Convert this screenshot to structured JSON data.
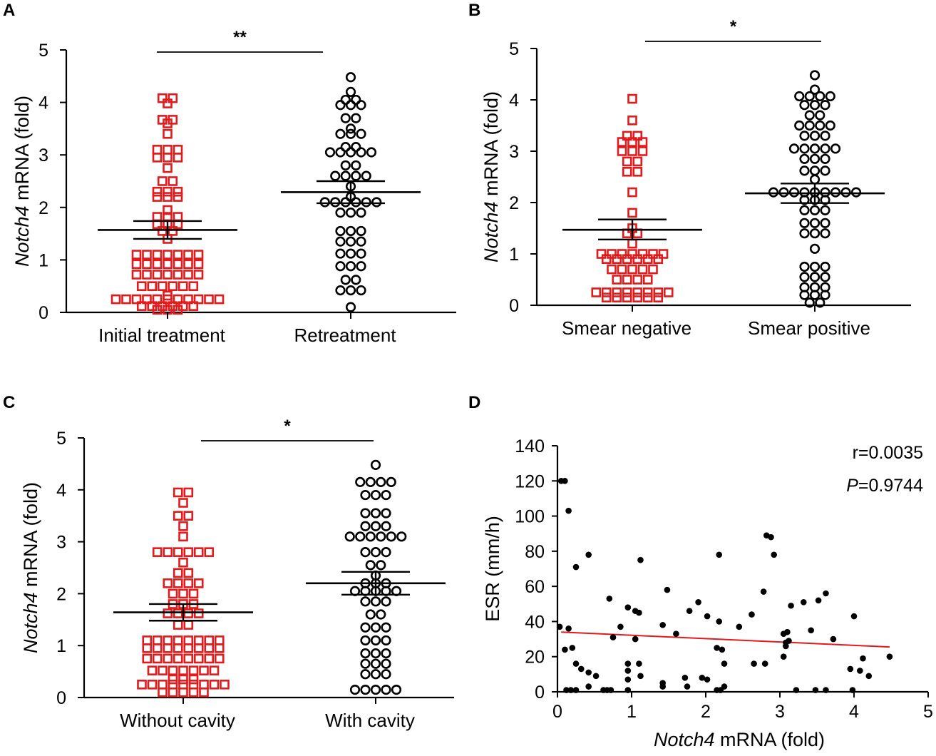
{
  "chart_data": [
    {
      "panel": "A",
      "type": "scatter",
      "ylabel": {
        "italic": "Notch4",
        "rest": " mRNA (fold)"
      },
      "ylim": [
        0,
        5
      ],
      "yticks": [
        0,
        1,
        2,
        3,
        4,
        5
      ],
      "significance": "**",
      "groups": [
        {
          "name": "Initial treatment",
          "color": "#e31a1c",
          "marker": "square",
          "mean": 1.57,
          "sem_upper": 1.74,
          "sem_lower": 1.4,
          "rows": [
            {
              "y": 4.08,
              "n": 2
            },
            {
              "y": 3.98,
              "n": 1
            },
            {
              "y": 3.67,
              "n": 2
            },
            {
              "y": 3.6,
              "n": 1
            },
            {
              "y": 3.4,
              "n": 1
            },
            {
              "y": 3.1,
              "n": 3
            },
            {
              "y": 2.95,
              "n": 3
            },
            {
              "y": 2.75,
              "n": 1
            },
            {
              "y": 2.5,
              "n": 2
            },
            {
              "y": 2.3,
              "n": 3
            },
            {
              "y": 2.2,
              "n": 3
            },
            {
              "y": 1.95,
              "n": 1
            },
            {
              "y": 1.82,
              "n": 3
            },
            {
              "y": 1.68,
              "n": 3
            },
            {
              "y": 1.55,
              "n": 2
            },
            {
              "y": 1.4,
              "n": 1
            },
            {
              "y": 1.1,
              "n": 7
            },
            {
              "y": 0.92,
              "n": 7
            },
            {
              "y": 0.72,
              "n": 7
            },
            {
              "y": 0.5,
              "n": 6
            },
            {
              "y": 0.32,
              "n": 1
            },
            {
              "y": 0.25,
              "n": 11
            },
            {
              "y": 0.12,
              "n": 6
            },
            {
              "y": 0.05,
              "n": 3
            }
          ]
        },
        {
          "name": "Retreatment",
          "color": "#000000",
          "marker": "circle",
          "mean": 2.29,
          "sem_upper": 2.5,
          "sem_lower": 2.08,
          "rows": [
            {
              "y": 4.48,
              "n": 1
            },
            {
              "y": 4.2,
              "n": 1
            },
            {
              "y": 4.05,
              "n": 2
            },
            {
              "y": 3.95,
              "n": 3
            },
            {
              "y": 3.7,
              "n": 2
            },
            {
              "y": 3.5,
              "n": 1
            },
            {
              "y": 3.4,
              "n": 3
            },
            {
              "y": 3.15,
              "n": 2
            },
            {
              "y": 3.05,
              "n": 5
            },
            {
              "y": 2.8,
              "n": 2
            },
            {
              "y": 2.6,
              "n": 4
            },
            {
              "y": 2.4,
              "n": 1
            },
            {
              "y": 2.2,
              "n": 1
            },
            {
              "y": 2.1,
              "n": 6
            },
            {
              "y": 1.9,
              "n": 3
            },
            {
              "y": 1.55,
              "n": 3
            },
            {
              "y": 1.35,
              "n": 3
            },
            {
              "y": 1.12,
              "n": 3
            },
            {
              "y": 0.88,
              "n": 3
            },
            {
              "y": 0.62,
              "n": 2
            },
            {
              "y": 0.42,
              "n": 3
            },
            {
              "y": 0.1,
              "n": 1
            }
          ]
        }
      ]
    },
    {
      "panel": "B",
      "type": "scatter",
      "ylabel": {
        "italic": "Notch4",
        "rest": " mRNA (fold)"
      },
      "ylim": [
        0,
        5
      ],
      "yticks": [
        0,
        1,
        2,
        3,
        4,
        5
      ],
      "significance": "*",
      "groups": [
        {
          "name": "Smear negative",
          "color": "#e31a1c",
          "marker": "square",
          "mean": 1.47,
          "sem_upper": 1.67,
          "sem_lower": 1.28,
          "rows": [
            {
              "y": 4.02,
              "n": 1
            },
            {
              "y": 3.6,
              "n": 1
            },
            {
              "y": 3.3,
              "n": 2
            },
            {
              "y": 3.18,
              "n": 3
            },
            {
              "y": 3.0,
              "n": 3
            },
            {
              "y": 2.8,
              "n": 2
            },
            {
              "y": 2.6,
              "n": 2
            },
            {
              "y": 2.2,
              "n": 1
            },
            {
              "y": 1.8,
              "n": 1
            },
            {
              "y": 1.5,
              "n": 1
            },
            {
              "y": 1.4,
              "n": 2
            },
            {
              "y": 1.2,
              "n": 1
            },
            {
              "y": 1.0,
              "n": 7
            },
            {
              "y": 0.9,
              "n": 6
            },
            {
              "y": 0.7,
              "n": 5
            },
            {
              "y": 0.5,
              "n": 4
            },
            {
              "y": 0.25,
              "n": 8
            },
            {
              "y": 0.15,
              "n": 6
            }
          ]
        },
        {
          "name": "Smear positive",
          "color": "#000000",
          "marker": "circle",
          "mean": 2.18,
          "sem_upper": 2.37,
          "sem_lower": 1.99,
          "rows": [
            {
              "y": 4.48,
              "n": 1
            },
            {
              "y": 4.2,
              "n": 1
            },
            {
              "y": 4.07,
              "n": 4
            },
            {
              "y": 3.9,
              "n": 3
            },
            {
              "y": 3.7,
              "n": 2
            },
            {
              "y": 3.5,
              "n": 4
            },
            {
              "y": 3.3,
              "n": 3
            },
            {
              "y": 3.05,
              "n": 5
            },
            {
              "y": 2.85,
              "n": 3
            },
            {
              "y": 2.62,
              "n": 3
            },
            {
              "y": 2.45,
              "n": 1
            },
            {
              "y": 2.2,
              "n": 9
            },
            {
              "y": 2.05,
              "n": 3
            },
            {
              "y": 1.85,
              "n": 3
            },
            {
              "y": 1.6,
              "n": 3
            },
            {
              "y": 1.4,
              "n": 3
            },
            {
              "y": 1.1,
              "n": 1
            },
            {
              "y": 0.75,
              "n": 3
            },
            {
              "y": 0.55,
              "n": 3
            },
            {
              "y": 0.35,
              "n": 3
            },
            {
              "y": 0.2,
              "n": 3
            },
            {
              "y": 0.05,
              "n": 2
            }
          ]
        }
      ]
    },
    {
      "panel": "C",
      "type": "scatter",
      "ylabel": {
        "italic": "Notch4",
        "rest": " mRNA (fold)"
      },
      "ylim": [
        0,
        5
      ],
      "yticks": [
        0,
        1,
        2,
        3,
        4,
        5
      ],
      "significance": "*",
      "groups": [
        {
          "name": "Without cavity",
          "color": "#e31a1c",
          "marker": "square",
          "mean": 1.64,
          "sem_upper": 1.8,
          "sem_lower": 1.48,
          "rows": [
            {
              "y": 3.95,
              "n": 2
            },
            {
              "y": 3.75,
              "n": 1
            },
            {
              "y": 3.5,
              "n": 2
            },
            {
              "y": 3.3,
              "n": 1
            },
            {
              "y": 3.1,
              "n": 1
            },
            {
              "y": 2.8,
              "n": 6
            },
            {
              "y": 2.6,
              "n": 1
            },
            {
              "y": 2.4,
              "n": 2
            },
            {
              "y": 2.2,
              "n": 4
            },
            {
              "y": 2.0,
              "n": 3
            },
            {
              "y": 1.8,
              "n": 3
            },
            {
              "y": 1.62,
              "n": 4
            },
            {
              "y": 1.4,
              "n": 2
            },
            {
              "y": 1.1,
              "n": 8
            },
            {
              "y": 0.95,
              "n": 8
            },
            {
              "y": 0.75,
              "n": 8
            },
            {
              "y": 0.52,
              "n": 7
            },
            {
              "y": 0.35,
              "n": 3
            },
            {
              "y": 0.25,
              "n": 9
            },
            {
              "y": 0.1,
              "n": 5
            }
          ]
        },
        {
          "name": "With cavity",
          "color": "#000000",
          "marker": "circle",
          "mean": 2.2,
          "sem_upper": 2.42,
          "sem_lower": 1.98,
          "rows": [
            {
              "y": 4.48,
              "n": 1
            },
            {
              "y": 4.15,
              "n": 4
            },
            {
              "y": 3.9,
              "n": 3
            },
            {
              "y": 3.55,
              "n": 3
            },
            {
              "y": 3.3,
              "n": 3
            },
            {
              "y": 3.1,
              "n": 6
            },
            {
              "y": 2.8,
              "n": 3
            },
            {
              "y": 2.55,
              "n": 2
            },
            {
              "y": 2.35,
              "n": 1
            },
            {
              "y": 2.2,
              "n": 3
            },
            {
              "y": 2.05,
              "n": 5
            },
            {
              "y": 1.85,
              "n": 3
            },
            {
              "y": 1.6,
              "n": 2
            },
            {
              "y": 1.35,
              "n": 3
            },
            {
              "y": 1.1,
              "n": 3
            },
            {
              "y": 0.85,
              "n": 3
            },
            {
              "y": 0.65,
              "n": 3
            },
            {
              "y": 0.45,
              "n": 3
            },
            {
              "y": 0.15,
              "n": 5
            }
          ]
        }
      ]
    },
    {
      "panel": "D",
      "type": "scatter",
      "xlabel": {
        "italic": "Notch4",
        "rest": " mRNA (fold)"
      },
      "ylabel": "ESR (mm/h)",
      "xlim": [
        0,
        5
      ],
      "ylim": [
        0,
        140
      ],
      "xticks": [
        0,
        1,
        2,
        3,
        4,
        5
      ],
      "yticks": [
        0,
        20,
        40,
        60,
        80,
        100,
        120,
        140
      ],
      "stat_r": "r=0.0035",
      "stat_p_label": "P",
      "stat_p_value": "=0.9744",
      "regression": {
        "x": [
          0.05,
          4.48
        ],
        "y": [
          34,
          25.5
        ],
        "color": "#e31a1c"
      },
      "points": [
        [
          0.05,
          120
        ],
        [
          0.1,
          120
        ],
        [
          0.15,
          103
        ],
        [
          0.25,
          71
        ],
        [
          0.42,
          78
        ],
        [
          0.03,
          37
        ],
        [
          0.15,
          36
        ],
        [
          0.1,
          24
        ],
        [
          0.2,
          25
        ],
        [
          0.25,
          16
        ],
        [
          0.32,
          13
        ],
        [
          0.42,
          11
        ],
        [
          0.52,
          9
        ],
        [
          0.42,
          3
        ],
        [
          0.12,
          1
        ],
        [
          0.18,
          1
        ],
        [
          0.25,
          1
        ],
        [
          0.62,
          1
        ],
        [
          0.67,
          1
        ],
        [
          0.72,
          1
        ],
        [
          0.7,
          53
        ],
        [
          0.75,
          31
        ],
        [
          0.85,
          37
        ],
        [
          0.95,
          48
        ],
        [
          1.05,
          46
        ],
        [
          0.95,
          16
        ],
        [
          0.95,
          12
        ],
        [
          0.95,
          7
        ],
        [
          0.95,
          1
        ],
        [
          1.05,
          30
        ],
        [
          1.1,
          45
        ],
        [
          1.12,
          75
        ],
        [
          1.1,
          16
        ],
        [
          1.12,
          9
        ],
        [
          1.42,
          38
        ],
        [
          1.48,
          58
        ],
        [
          1.42,
          5
        ],
        [
          1.42,
          3
        ],
        [
          1.6,
          33
        ],
        [
          1.72,
          8
        ],
        [
          1.75,
          3
        ],
        [
          1.78,
          46
        ],
        [
          1.9,
          51
        ],
        [
          1.95,
          8
        ],
        [
          2.02,
          43
        ],
        [
          2.02,
          7
        ],
        [
          2.15,
          25
        ],
        [
          2.18,
          78
        ],
        [
          2.18,
          40
        ],
        [
          2.22,
          24
        ],
        [
          2.25,
          16
        ],
        [
          2.25,
          3
        ],
        [
          2.15,
          1
        ],
        [
          2.2,
          1
        ],
        [
          2.45,
          37
        ],
        [
          2.62,
          44
        ],
        [
          2.65,
          16
        ],
        [
          2.78,
          57
        ],
        [
          2.8,
          16
        ],
        [
          2.82,
          89
        ],
        [
          2.88,
          88
        ],
        [
          2.92,
          78
        ],
        [
          3.05,
          20
        ],
        [
          3.05,
          33
        ],
        [
          3.08,
          26
        ],
        [
          3.08,
          28
        ],
        [
          3.1,
          34
        ],
        [
          3.12,
          29
        ],
        [
          3.15,
          49
        ],
        [
          3.22,
          1
        ],
        [
          3.32,
          51
        ],
        [
          3.42,
          35
        ],
        [
          3.48,
          1
        ],
        [
          3.52,
          52
        ],
        [
          3.62,
          56
        ],
        [
          3.62,
          1
        ],
        [
          3.72,
          30
        ],
        [
          4.0,
          43
        ],
        [
          3.95,
          13
        ],
        [
          3.98,
          1
        ],
        [
          4.08,
          12
        ],
        [
          4.12,
          19
        ],
        [
          4.2,
          9
        ],
        [
          4.48,
          20
        ]
      ]
    }
  ]
}
